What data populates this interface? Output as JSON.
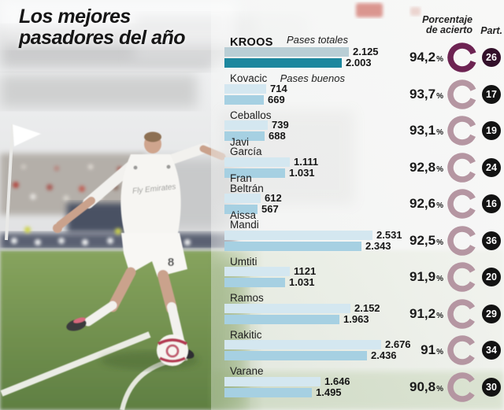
{
  "title": {
    "line1": "Los mejores",
    "line2": "pasadores del año"
  },
  "headers": {
    "accuracy_line1": "Porcentaje",
    "accuracy_line2": "de acierto",
    "participation": "Part."
  },
  "legend": {
    "total": "Pases totales",
    "good": "Pases buenos"
  },
  "symbols": {
    "percent": "%"
  },
  "colors": {
    "highlight_bar_total": "#b9ced5",
    "highlight_bar_good": "#1c879e",
    "bar_total": "#d4e7f0",
    "bar_good": "#a6d0e2",
    "highlight_ring": "#6d2352",
    "ring": "#b596a2",
    "highlight_badge": "#33102a",
    "badge": "#131313"
  },
  "background_photo": {
    "description": "Blurry stadium photo: Real Madrid player in white kit kicking a red-and-white ball by the corner flag, crowd and green pitch behind",
    "jersey_text": "Fly Emirates",
    "shorts_number": "8"
  },
  "chart_data": {
    "type": "bar",
    "orientation": "horizontal",
    "title": "Los mejores pasadores del año",
    "series_labels": [
      "Pases totales",
      "Pases buenos"
    ],
    "xmax": 2676,
    "players": [
      {
        "name": "KROOS",
        "name_lines": [
          "KROOS"
        ],
        "pases_totales": 2125,
        "pases_totales_label": "2.125",
        "pases_buenos": 2003,
        "pases_buenos_label": "2.003",
        "accuracy_pct": 94.2,
        "accuracy_label": "94,2",
        "participation": "26",
        "highlight": true
      },
      {
        "name": "Kovacic",
        "name_lines": [
          "Kovacic"
        ],
        "pases_totales": 714,
        "pases_totales_label": "714",
        "pases_buenos": 669,
        "pases_buenos_label": "669",
        "accuracy_pct": 93.7,
        "accuracy_label": "93,7",
        "participation": "17",
        "highlight": false
      },
      {
        "name": "Ceballos",
        "name_lines": [
          "Ceballos"
        ],
        "pases_totales": 739,
        "pases_totales_label": "739",
        "pases_buenos": 688,
        "pases_buenos_label": "688",
        "accuracy_pct": 93.1,
        "accuracy_label": "93,1",
        "participation": "19",
        "highlight": false
      },
      {
        "name": "Javi García",
        "name_lines": [
          "Javi",
          "García"
        ],
        "pases_totales": 1111,
        "pases_totales_label": "1.111",
        "pases_buenos": 1031,
        "pases_buenos_label": "1.031",
        "accuracy_pct": 92.8,
        "accuracy_label": "92,8",
        "participation": "24",
        "highlight": false
      },
      {
        "name": "Fran Beltrán",
        "name_lines": [
          "Fran",
          "Beltrán"
        ],
        "pases_totales": 612,
        "pases_totales_label": "612",
        "pases_buenos": 567,
        "pases_buenos_label": "567",
        "accuracy_pct": 92.6,
        "accuracy_label": "92,6",
        "participation": "16",
        "highlight": false
      },
      {
        "name": "Aissa Mandi",
        "name_lines": [
          "Aissa",
          "Mandi"
        ],
        "pases_totales": 2531,
        "pases_totales_label": "2.531",
        "pases_buenos": 2343,
        "pases_buenos_label": "2.343",
        "accuracy_pct": 92.5,
        "accuracy_label": "92,5",
        "participation": "36",
        "highlight": false
      },
      {
        "name": "Umtiti",
        "name_lines": [
          "Umtiti"
        ],
        "pases_totales": 1121,
        "pases_totales_label": "1121",
        "pases_buenos": 1031,
        "pases_buenos_label": "1.031",
        "accuracy_pct": 91.9,
        "accuracy_label": "91,9",
        "participation": "20",
        "highlight": false
      },
      {
        "name": "Ramos",
        "name_lines": [
          "Ramos"
        ],
        "pases_totales": 2152,
        "pases_totales_label": "2.152",
        "pases_buenos": 1963,
        "pases_buenos_label": "1.963",
        "accuracy_pct": 91.2,
        "accuracy_label": "91,2",
        "participation": "29",
        "highlight": false
      },
      {
        "name": "Rakitic",
        "name_lines": [
          "Rakitic"
        ],
        "pases_totales": 2676,
        "pases_totales_label": "2.676",
        "pases_buenos": 2436,
        "pases_buenos_label": "2.436",
        "accuracy_pct": 91.0,
        "accuracy_label": "91",
        "participation": "34",
        "highlight": false
      },
      {
        "name": "Varane",
        "name_lines": [
          "Varane"
        ],
        "pases_totales": 1646,
        "pases_totales_label": "1.646",
        "pases_buenos": 1495,
        "pases_buenos_label": "1.495",
        "accuracy_pct": 90.8,
        "accuracy_label": "90,8",
        "participation": "30",
        "highlight": false
      }
    ]
  }
}
